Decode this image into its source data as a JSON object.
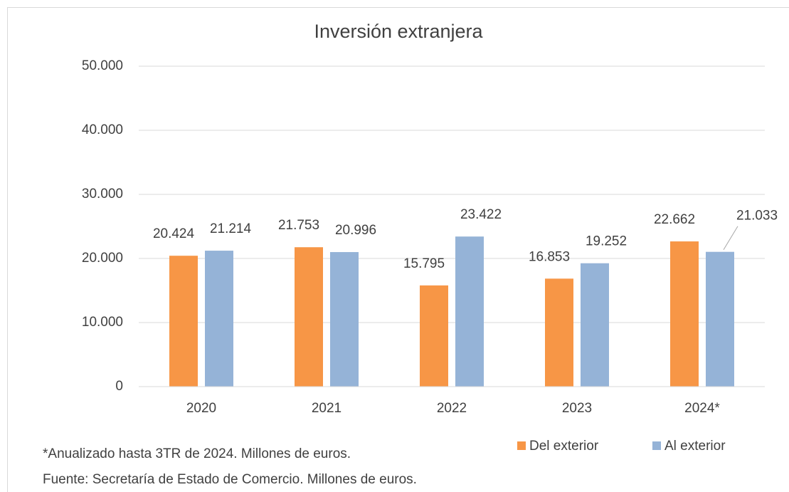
{
  "chart_data": {
    "type": "bar",
    "title": "Inversión extranjera",
    "categories": [
      "2020",
      "2021",
      "2022",
      "2023",
      "2024*"
    ],
    "series": [
      {
        "name": "Del exterior",
        "color": "#f79646",
        "values": [
          20424,
          21753,
          15795,
          16853,
          22662
        ],
        "value_labels": [
          "20.424",
          "21.753",
          "15.795",
          "16.853",
          "22.662"
        ]
      },
      {
        "name": "Al exterior",
        "color": "#95b3d7",
        "values": [
          21214,
          20996,
          23422,
          19252,
          21033
        ],
        "value_labels": [
          "21.214",
          "20.996",
          "23.422",
          "19.252",
          "21.033"
        ]
      }
    ],
    "ylim": [
      0,
      50000
    ],
    "yticks": [
      0,
      {
        "value": 10000,
        "label": "10.000"
      },
      {
        "value": 20000,
        "label": "20.000"
      },
      {
        "value": 30000,
        "label": "30.000"
      },
      {
        "value": 40000,
        "label": "40.000"
      },
      {
        "value": 50000,
        "label": "50.000"
      }
    ],
    "grid": true,
    "legend": "bottom-right",
    "notes": [
      "*Anualizado hasta 3TR de 2024. Millones de euros.",
      "Fuente: Secretaría de Estado de Comercio. Millones de euros."
    ]
  }
}
